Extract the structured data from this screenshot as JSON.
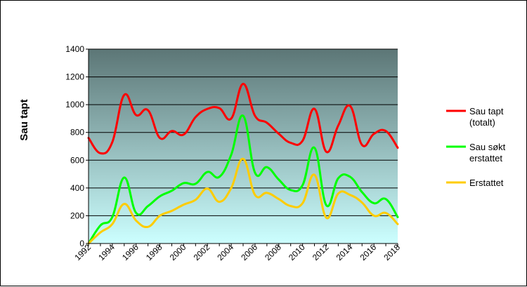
{
  "chart_data": {
    "type": "line",
    "title": "",
    "xlabel": "",
    "ylabel": "Sau tapt",
    "x": [
      1992,
      1993,
      1994,
      1995,
      1996,
      1997,
      1998,
      1999,
      2000,
      2001,
      2002,
      2003,
      2004,
      2005,
      2006,
      2007,
      2008,
      2009,
      2010,
      2011,
      2012,
      2013,
      2014,
      2015,
      2016,
      2017,
      2018
    ],
    "xticks": [
      "1992",
      "1994",
      "1996",
      "1998",
      "2000",
      "2002",
      "2004",
      "2006",
      "2008",
      "2010",
      "2012",
      "2014",
      "2016",
      "2018"
    ],
    "yticks": [
      "0",
      "200",
      "400",
      "600",
      "800",
      "1000",
      "1200",
      "1400"
    ],
    "ylim": [
      0,
      1400
    ],
    "xlim": [
      1992,
      2018
    ],
    "grid": true,
    "legend_position": "right",
    "series": [
      {
        "name": "Sau tapt (totalt)",
        "legend_lines": [
          "Sau tapt",
          "(totalt)"
        ],
        "color": "#ff0000",
        "values": [
          760,
          650,
          730,
          1070,
          925,
          960,
          760,
          810,
          785,
          910,
          970,
          975,
          900,
          1150,
          920,
          870,
          790,
          725,
          740,
          970,
          660,
          850,
          990,
          710,
          790,
          810,
          690
        ]
      },
      {
        "name": "Sau søkt erstattet",
        "legend_lines": [
          "Sau søkt",
          "erstattet"
        ],
        "color": "#00ff00",
        "values": [
          0,
          130,
          190,
          475,
          220,
          270,
          340,
          380,
          435,
          430,
          515,
          480,
          640,
          920,
          510,
          550,
          460,
          385,
          420,
          690,
          275,
          470,
          480,
          370,
          290,
          320,
          190
        ]
      },
      {
        "name": "Erstattet",
        "legend_lines": [
          "Erstattet"
        ],
        "color": "#ffcc00",
        "values": [
          0,
          80,
          140,
          285,
          165,
          120,
          200,
          235,
          280,
          315,
          395,
          300,
          400,
          610,
          350,
          365,
          320,
          270,
          290,
          495,
          185,
          360,
          350,
          295,
          200,
          220,
          140
        ]
      }
    ]
  },
  "colors": {
    "plot_top": "#5c7676",
    "plot_bottom": "#ccffff",
    "grid": "#000000"
  }
}
